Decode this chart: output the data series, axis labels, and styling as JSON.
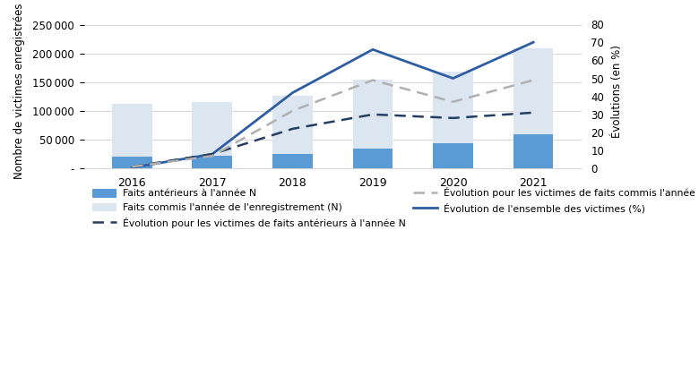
{
  "years": [
    2016,
    2017,
    2018,
    2019,
    2020,
    2021
  ],
  "bar_anterieurs": [
    20000,
    22000,
    26000,
    35000,
    44000,
    59000
  ],
  "bar_commis": [
    113000,
    115000,
    127000,
    155000,
    168000,
    210000
  ],
  "evol_ensemble": [
    0.5,
    8,
    42,
    66,
    50,
    70
  ],
  "evol_anterieurs": [
    1,
    8,
    22,
    30,
    28,
    31
  ],
  "evol_commis": [
    1,
    7,
    32,
    49,
    37,
    49
  ],
  "ylabel_left": "Nombre de victimes enregistrées",
  "ylabel_right": "Évolutions (en %)",
  "ylim_left": [
    0,
    270000
  ],
  "ylim_right": [
    0,
    86
  ],
  "yticks_left": [
    0,
    50000,
    100000,
    150000,
    200000,
    250000
  ],
  "yticks_right": [
    0,
    10,
    20,
    30,
    40,
    50,
    60,
    70,
    80
  ],
  "bar_dark_color": "#5b9bd5",
  "bar_light_color": "#dce6f1",
  "line_ensemble_color": "#2e5da3",
  "line_anterieurs_color": "#243f60",
  "line_commis_color": "#b0b0b0",
  "legend_labels": [
    "Faits antérieurs à l'année N",
    "Faits commis l'année de l'enregistrement (N)",
    "Évolution pour les victimes de faits antérieurs à l'année N",
    "Évolution pour les victimes de faits commis l'année N (%)",
    "Évolution de l'ensemble des victimes (%)"
  ],
  "background_color": "#ffffff",
  "grid_color": "#d0d0d0"
}
